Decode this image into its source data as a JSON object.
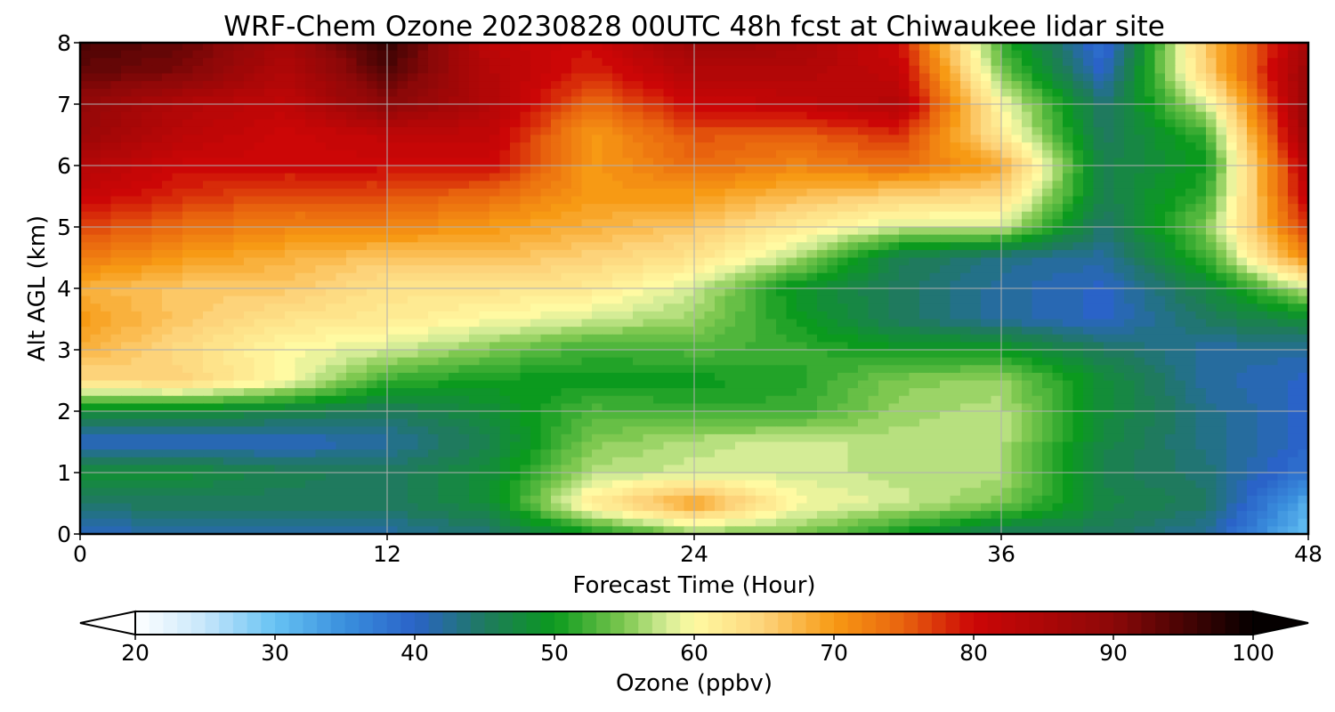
{
  "chart_data": {
    "type": "heatmap",
    "title": "WRF-Chem Ozone  20230828 00UTC 48h fcst at Chiwaukee lidar site",
    "xlabel": "Forecast Time (Hour)",
    "ylabel": "Alt AGL (km)",
    "xlim": [
      0,
      48
    ],
    "ylim": [
      0,
      8
    ],
    "xticks": [
      0,
      12,
      24,
      36,
      48
    ],
    "yticks": [
      0,
      1,
      2,
      3,
      4,
      5,
      6,
      7,
      8
    ],
    "grid": true,
    "x": [
      0,
      4,
      8,
      12,
      16,
      20,
      24,
      28,
      32,
      36,
      40,
      44,
      48
    ],
    "y": [
      0,
      0.5,
      1,
      1.5,
      2,
      2.5,
      3,
      3.5,
      4,
      4.5,
      5,
      5.5,
      6,
      6.5,
      7,
      7.5,
      8
    ],
    "z": [
      [
        40,
        42,
        42,
        42,
        44,
        50,
        55,
        55,
        50,
        45,
        45,
        42,
        30
      ],
      [
        45,
        45,
        45,
        45,
        48,
        62,
        70,
        60,
        58,
        55,
        47,
        45,
        32
      ],
      [
        48,
        48,
        46,
        45,
        48,
        57,
        58,
        58,
        57,
        57,
        46,
        44,
        38
      ],
      [
        40,
        40,
        40,
        42,
        46,
        55,
        57,
        58,
        57,
        57,
        47,
        43,
        40
      ],
      [
        48,
        48,
        47,
        45,
        48,
        53,
        52,
        52,
        56,
        57,
        48,
        43,
        40
      ],
      [
        64,
        65,
        60,
        52,
        50,
        50,
        50,
        51,
        55,
        56,
        48,
        42,
        40
      ],
      [
        68,
        64,
        60,
        58,
        55,
        52,
        53,
        52,
        50,
        50,
        45,
        42,
        42
      ],
      [
        70,
        66,
        63,
        62,
        60,
        58,
        56,
        50,
        45,
        42,
        40,
        45,
        48
      ],
      [
        68,
        66,
        66,
        63,
        63,
        62,
        58,
        49,
        45,
        42,
        40,
        47,
        58
      ],
      [
        73,
        70,
        68,
        66,
        67,
        65,
        63,
        57,
        46,
        43,
        42,
        52,
        72
      ],
      [
        77,
        74,
        72,
        72,
        70,
        68,
        66,
        62,
        58,
        58,
        44,
        55,
        78
      ],
      [
        81,
        78,
        76,
        76,
        74,
        70,
        70,
        67,
        65,
        64,
        46,
        52,
        82
      ],
      [
        84,
        80,
        80,
        80,
        80,
        70,
        74,
        72,
        74,
        69,
        46,
        50,
        84
      ],
      [
        88,
        83,
        80,
        82,
        82,
        70,
        76,
        75,
        78,
        62,
        45,
        52,
        88
      ],
      [
        89,
        84,
        82,
        90,
        84,
        74,
        80,
        82,
        84,
        60,
        44,
        58,
        89
      ],
      [
        93,
        91,
        84,
        94,
        84,
        78,
        84,
        84,
        82,
        55,
        40,
        65,
        88
      ],
      [
        95,
        93,
        86,
        97,
        82,
        80,
        88,
        86,
        80,
        52,
        38,
        66,
        86
      ]
    ],
    "colorbar": {
      "label": "Ozone  (ppbv)",
      "min": 20,
      "max": 100,
      "ticks": [
        20,
        30,
        40,
        50,
        60,
        70,
        80,
        90,
        100
      ],
      "extend": "both",
      "orientation": "horizontal",
      "placement": "bottom",
      "stops": [
        {
          "v": 20,
          "c": "#ffffff"
        },
        {
          "v": 25,
          "c": "#c6e6fb"
        },
        {
          "v": 30,
          "c": "#66c2f3"
        },
        {
          "v": 35,
          "c": "#3a8fdd"
        },
        {
          "v": 40,
          "c": "#2a63c8"
        },
        {
          "v": 45,
          "c": "#1f7a5e"
        },
        {
          "v": 50,
          "c": "#0b9a1e"
        },
        {
          "v": 55,
          "c": "#7ec850"
        },
        {
          "v": 58,
          "c": "#d4ec96"
        },
        {
          "v": 60,
          "c": "#fffaa2"
        },
        {
          "v": 65,
          "c": "#fdd37a"
        },
        {
          "v": 70,
          "c": "#f79a14"
        },
        {
          "v": 75,
          "c": "#e8620e"
        },
        {
          "v": 80,
          "c": "#cc0606"
        },
        {
          "v": 90,
          "c": "#8c0808"
        },
        {
          "v": 100,
          "c": "#050000"
        }
      ]
    }
  }
}
